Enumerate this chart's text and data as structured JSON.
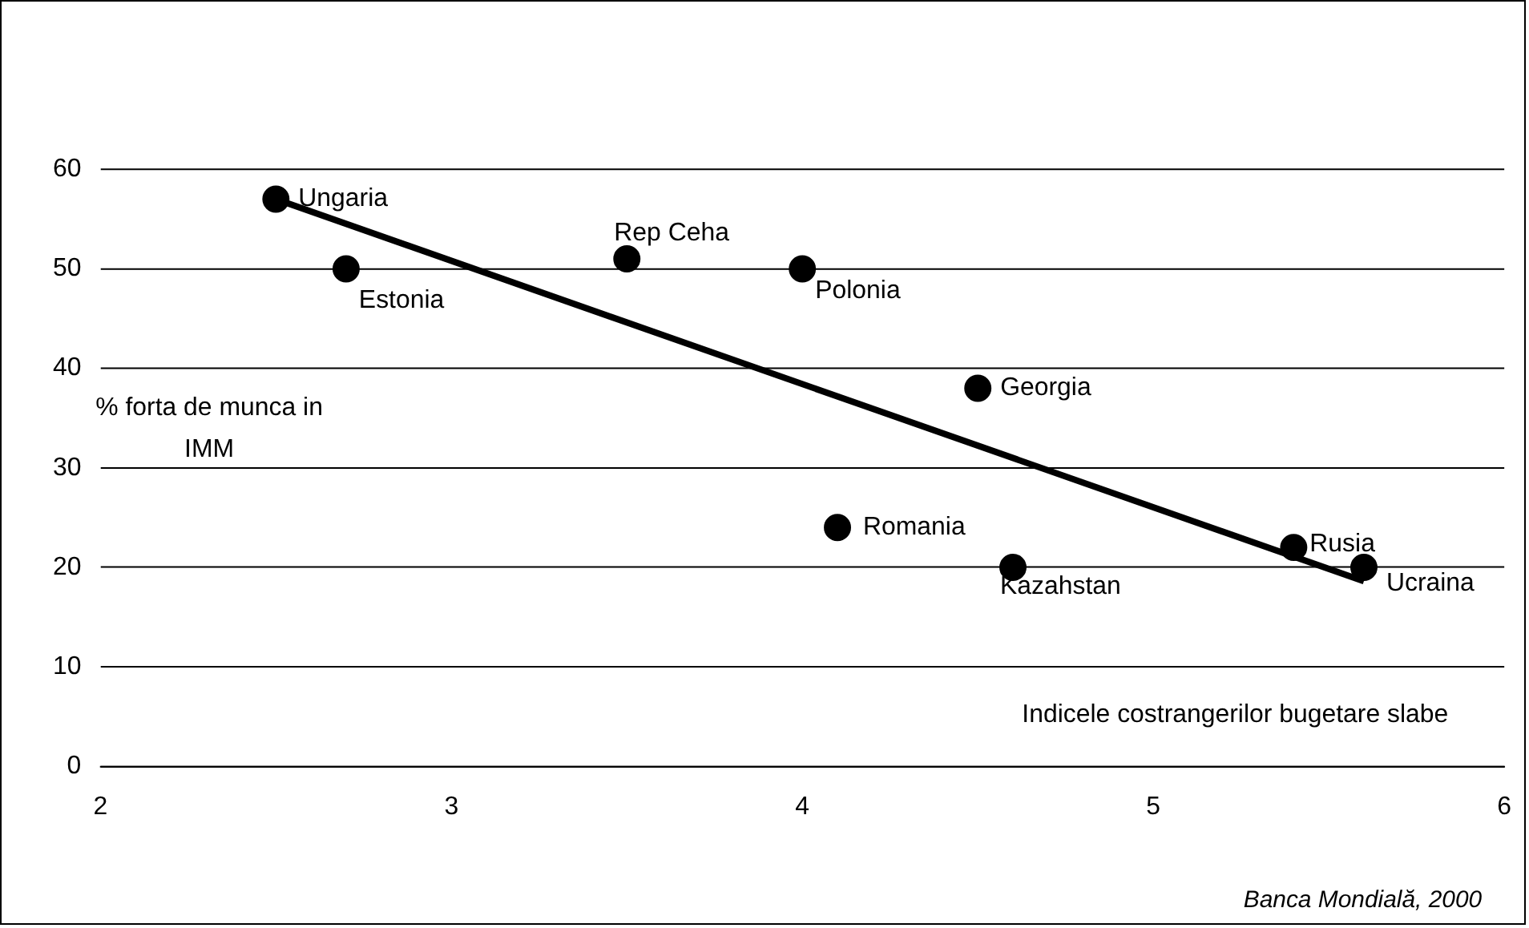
{
  "chart_data": {
    "type": "scatter",
    "xlabel": "Indicele costrangerilor bugetare slabe",
    "ylabel": "% forta de munca in IMM",
    "xlim": [
      2,
      6
    ],
    "xticks": [
      2,
      3,
      4,
      5,
      6
    ],
    "ylim": [
      0,
      60
    ],
    "yticks": [
      0,
      10,
      20,
      30,
      40,
      50,
      60
    ],
    "grid": "y",
    "legend": false,
    "series": [
      {
        "type": "scatter",
        "marker": "circle",
        "color": "#000000",
        "x": [
          2.5,
          2.7,
          3.5,
          4.0,
          4.5,
          4.1,
          4.6,
          5.4,
          5.6
        ],
        "values": [
          57,
          50,
          51,
          50,
          38,
          24,
          20,
          22,
          20
        ]
      },
      {
        "type": "line",
        "marker": "none",
        "color": "#000000",
        "x": [
          2.5,
          5.6
        ],
        "values": [
          57,
          18.6
        ]
      }
    ],
    "annotations": [
      {
        "text": "Ungaria",
        "x": 2.5,
        "y": 57
      },
      {
        "text": "Estonia",
        "x": 2.7,
        "y": 50
      },
      {
        "text": "Rep Ceha",
        "x": 3.5,
        "y": 51
      },
      {
        "text": "Polonia",
        "x": 4.0,
        "y": 50
      },
      {
        "text": "Georgia",
        "x": 4.5,
        "y": 38
      },
      {
        "text": "Romania",
        "x": 4.1,
        "y": 24
      },
      {
        "text": "Kazahstan",
        "x": 4.6,
        "y": 20
      },
      {
        "text": "Rusia",
        "x": 5.4,
        "y": 22
      },
      {
        "text": "Ucraina",
        "x": 5.6,
        "y": 20
      },
      "Banca Mondială, 2000"
    ]
  }
}
